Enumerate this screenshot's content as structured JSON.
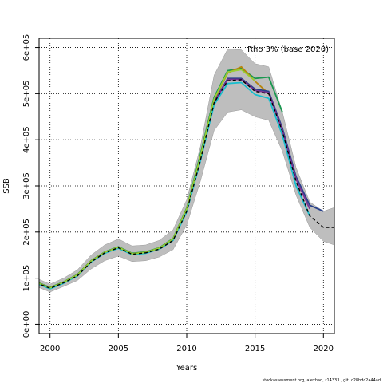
{
  "chart_data": {
    "type": "line",
    "title": "",
    "annotation": "Rho 3% (base 2020)",
    "xlabel": "Years",
    "ylabel": "SSB",
    "xlim": [
      1999.2,
      2020.8
    ],
    "ylim": [
      -20000,
      620000
    ],
    "x_ticks": [
      2000,
      2005,
      2010,
      2015,
      2020
    ],
    "x_tick_labels": [
      "2000",
      "2005",
      "2010",
      "2015",
      "2020"
    ],
    "y_ticks": [
      0,
      100000,
      200000,
      300000,
      400000,
      500000,
      600000
    ],
    "y_tick_labels": [
      "0e+00",
      "1e+05",
      "2e+05",
      "3e+05",
      "4e+05",
      "5e+05",
      "6e+05"
    ],
    "grid": true,
    "confidence_band": {
      "x": [
        1999,
        2000,
        2001,
        2002,
        2003,
        2004,
        2005,
        2006,
        2007,
        2008,
        2009,
        2010,
        2011,
        2012,
        2013,
        2014,
        2015,
        2016,
        2017,
        2018,
        2019,
        2020,
        2021
      ],
      "upper": [
        100000,
        87000,
        100000,
        118000,
        150000,
        172000,
        185000,
        170000,
        172000,
        182000,
        205000,
        270000,
        385000,
        540000,
        597000,
        595000,
        565000,
        558000,
        460000,
        340000,
        265000,
        245000,
        255000
      ],
      "lower": [
        82000,
        70000,
        82000,
        95000,
        120000,
        138000,
        148000,
        136000,
        138000,
        146000,
        162000,
        215000,
        310000,
        420000,
        460000,
        465000,
        450000,
        442000,
        375000,
        280000,
        210000,
        180000,
        170000
      ],
      "color": "#bebebe"
    },
    "series": [
      {
        "color": "#000000",
        "dashed": true,
        "x": [
          1999,
          2000,
          2001,
          2002,
          2003,
          2004,
          2005,
          2006,
          2007,
          2008,
          2009,
          2010,
          2011,
          2012,
          2013,
          2014,
          2015,
          2016,
          2017,
          2018,
          2019,
          2020,
          2021
        ],
        "values": [
          90000,
          78000,
          90000,
          105000,
          135000,
          155000,
          166000,
          152000,
          155000,
          163000,
          182000,
          245000,
          355000,
          480000,
          528000,
          530000,
          505000,
          500000,
          418000,
          310000,
          235000,
          210000,
          210000
        ]
      },
      {
        "color": "#1a9850",
        "dashed": false,
        "x": [
          1999,
          2000,
          2001,
          2002,
          2003,
          2004,
          2005,
          2006,
          2007,
          2008,
          2009,
          2010,
          2011,
          2012,
          2013,
          2014,
          2015,
          2016,
          2017
        ],
        "values": [
          92000,
          80000,
          92000,
          108000,
          138000,
          157000,
          168000,
          154000,
          157000,
          166000,
          186000,
          252000,
          368000,
          492000,
          550000,
          555000,
          533000,
          536000,
          460000
        ]
      },
      {
        "color": "#b8860b",
        "dashed": false,
        "x": [
          1999,
          2000,
          2001,
          2002,
          2003,
          2004,
          2005,
          2006,
          2007,
          2008,
          2009,
          2010,
          2011,
          2012,
          2013,
          2014,
          2015,
          2016
        ],
        "values": [
          91000,
          79000,
          91000,
          107000,
          137000,
          156000,
          167000,
          153000,
          156000,
          165000,
          184000,
          249000,
          362000,
          486000,
          545000,
          558000,
          527000,
          500000
        ]
      },
      {
        "color": "#27408b",
        "dashed": false,
        "x": [
          1999,
          2000,
          2001,
          2002,
          2003,
          2004,
          2005,
          2006,
          2007,
          2008,
          2009,
          2010,
          2011,
          2012,
          2013,
          2014,
          2015,
          2016,
          2017,
          2018,
          2019,
          2020
        ],
        "values": [
          90000,
          78000,
          90000,
          106000,
          136000,
          155000,
          166000,
          152000,
          155000,
          164000,
          183000,
          247000,
          358000,
          482000,
          533000,
          533000,
          510000,
          505000,
          425000,
          320000,
          258000,
          245000
        ]
      },
      {
        "color": "#7b3294",
        "dashed": false,
        "x": [
          1999,
          2000,
          2001,
          2002,
          2003,
          2004,
          2005,
          2006,
          2007,
          2008,
          2009,
          2010,
          2011,
          2012,
          2013,
          2014,
          2015,
          2016,
          2017,
          2018,
          2019
        ],
        "values": [
          90000,
          78000,
          90000,
          106000,
          136000,
          155000,
          166000,
          152000,
          155000,
          164000,
          183000,
          246000,
          357000,
          481000,
          531000,
          531000,
          507000,
          502000,
          420000,
          315000,
          250000
        ]
      },
      {
        "color": "#17becf",
        "dashed": false,
        "x": [
          1999,
          2000,
          2001,
          2002,
          2003,
          2004,
          2005,
          2006,
          2007,
          2008,
          2009,
          2010,
          2011,
          2012,
          2013,
          2014,
          2015,
          2016,
          2017,
          2018,
          2019
        ],
        "values": [
          89000,
          77000,
          89000,
          105000,
          135000,
          154000,
          165000,
          151000,
          154000,
          163000,
          182000,
          244000,
          354000,
          476000,
          522000,
          524000,
          498000,
          490000,
          410000,
          300000,
          235000
        ]
      },
      {
        "color": "#9acd32",
        "dashed": false,
        "x": [
          1999,
          2000,
          2001,
          2002,
          2003,
          2004,
          2005,
          2006,
          2007,
          2008,
          2009,
          2010,
          2011,
          2012,
          2013,
          2014,
          2015
        ],
        "values": [
          91000,
          79000,
          91000,
          107000,
          137000,
          156000,
          167000,
          153000,
          156000,
          165000,
          185000,
          250000,
          363000,
          488000,
          547000,
          552000,
          528000
        ]
      }
    ]
  },
  "footer_text": "stockassessment.org, alexhad, r14333 ,  git: c28bdc2a44ad"
}
